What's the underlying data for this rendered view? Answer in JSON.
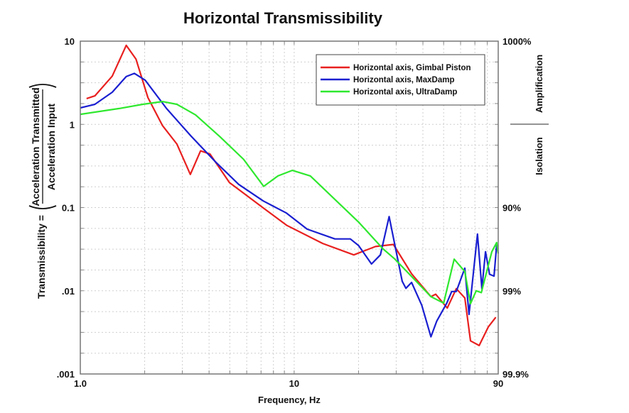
{
  "chart_data": {
    "type": "line",
    "title": "Horizontal Transmissibility",
    "xlabel": "Frequency, Hz",
    "ylabel_prefix": "Transmissibility =",
    "ylabel_numerator": "Acceleration Transmitted",
    "ylabel_denominator": "Acceleration Input",
    "xscale": "log",
    "yscale": "log",
    "xlim": [
      1,
      90
    ],
    "ylim": [
      0.001,
      10
    ],
    "grid": true,
    "legend_position": "top-right",
    "x_ticks": [
      {
        "value": 1,
        "label": "1.0"
      },
      {
        "value": 10,
        "label": "10"
      },
      {
        "value": 90,
        "label": "90"
      }
    ],
    "y_ticks": [
      {
        "value": 10,
        "label": "10"
      },
      {
        "value": 1,
        "label": "1"
      },
      {
        "value": 0.1,
        "label": "0.1"
      },
      {
        "value": 0.01,
        "label": ".01"
      },
      {
        "value": 0.001,
        "label": ".001"
      }
    ],
    "right_ticks": [
      {
        "value": 10,
        "label": "1000%"
      },
      {
        "value": 0.1,
        "label": "90%"
      },
      {
        "value": 0.01,
        "label": "99%"
      },
      {
        "value": 0.001,
        "label": "99.9%"
      }
    ],
    "right_labels": {
      "upper": "Amplification",
      "lower": "Isolation"
    },
    "series": [
      {
        "name": "Horizontal axis, Gimbal Piston",
        "color": "#e8201f",
        "points": [
          [
            1.07,
            2.04
          ],
          [
            1.17,
            2.2
          ],
          [
            1.41,
            3.8
          ],
          [
            1.64,
            8.9
          ],
          [
            1.82,
            6.1
          ],
          [
            2.07,
            2.1
          ],
          [
            2.42,
            0.97
          ],
          [
            2.83,
            0.58
          ],
          [
            3.27,
            0.25
          ],
          [
            3.65,
            0.48
          ],
          [
            4.04,
            0.44
          ],
          [
            4.98,
            0.2
          ],
          [
            7.17,
            0.099
          ],
          [
            9.25,
            0.061
          ],
          [
            13.6,
            0.037
          ],
          [
            19,
            0.027
          ],
          [
            24,
            0.034
          ],
          [
            29.1,
            0.036
          ],
          [
            35.4,
            0.016
          ],
          [
            43.6,
            0.0085
          ],
          [
            45.9,
            0.0091
          ],
          [
            52,
            0.0062
          ],
          [
            57.3,
            0.0106
          ],
          [
            62.8,
            0.0082
          ],
          [
            66.8,
            0.0025
          ],
          [
            73.3,
            0.0022
          ],
          [
            81,
            0.0037
          ],
          [
            87.7,
            0.0048
          ]
        ]
      },
      {
        "name": "Horizontal axis, MaxDamp",
        "color": "#1a1fd0",
        "points": [
          [
            1.0,
            1.58
          ],
          [
            1.17,
            1.74
          ],
          [
            1.41,
            2.43
          ],
          [
            1.64,
            3.75
          ],
          [
            1.79,
            4.1
          ],
          [
            2.01,
            3.4
          ],
          [
            2.53,
            1.55
          ],
          [
            3.3,
            0.72
          ],
          [
            4.26,
            0.36
          ],
          [
            5.5,
            0.19
          ],
          [
            7.17,
            0.12
          ],
          [
            9.2,
            0.086
          ],
          [
            11.5,
            0.055
          ],
          [
            15.5,
            0.042
          ],
          [
            18.3,
            0.042
          ],
          [
            20,
            0.035
          ],
          [
            23,
            0.021
          ],
          [
            25.3,
            0.027
          ],
          [
            27.8,
            0.078
          ],
          [
            32,
            0.013
          ],
          [
            33.3,
            0.0107
          ],
          [
            35.4,
            0.0126
          ],
          [
            39.5,
            0.0067
          ],
          [
            43.6,
            0.0028
          ],
          [
            46.4,
            0.0043
          ],
          [
            51.7,
            0.0071
          ],
          [
            54.5,
            0.0098
          ],
          [
            57.3,
            0.0098
          ],
          [
            62.8,
            0.0187
          ],
          [
            65.7,
            0.0052
          ],
          [
            72,
            0.048
          ],
          [
            75.5,
            0.0106
          ],
          [
            78.5,
            0.0295
          ],
          [
            82,
            0.0158
          ],
          [
            86,
            0.015
          ],
          [
            88.5,
            0.0355
          ],
          [
            90,
            0.034
          ]
        ]
      },
      {
        "name": "Horizontal axis, UltraDamp",
        "color": "#2ee82e",
        "points": [
          [
            1.0,
            1.32
          ],
          [
            1.52,
            1.55
          ],
          [
            1.96,
            1.74
          ],
          [
            2.42,
            1.88
          ],
          [
            2.83,
            1.74
          ],
          [
            3.46,
            1.3
          ],
          [
            4.5,
            0.71
          ],
          [
            5.8,
            0.38
          ],
          [
            7.2,
            0.18
          ],
          [
            8.4,
            0.24
          ],
          [
            9.8,
            0.28
          ],
          [
            11.9,
            0.24
          ],
          [
            20,
            0.067
          ],
          [
            26,
            0.032
          ],
          [
            29.6,
            0.024
          ],
          [
            43.6,
            0.0085
          ],
          [
            50,
            0.0071
          ],
          [
            56,
            0.024
          ],
          [
            62.8,
            0.017
          ],
          [
            66.8,
            0.007
          ],
          [
            71,
            0.01
          ],
          [
            75,
            0.0095
          ],
          [
            84,
            0.0295
          ],
          [
            88.5,
            0.038
          ],
          [
            90,
            0.028
          ]
        ]
      }
    ]
  }
}
